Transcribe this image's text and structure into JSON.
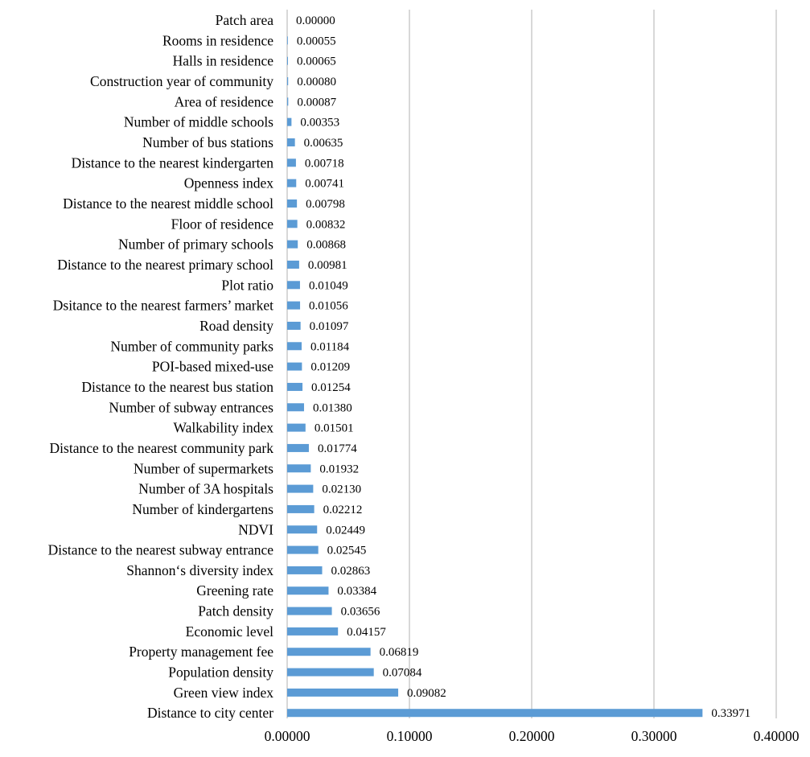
{
  "chart_data": {
    "type": "bar",
    "orientation": "horizontal",
    "categories": [
      "Patch area",
      "Rooms in residence",
      "Halls in residence",
      "Construction year of community",
      "Area of residence",
      "Number of middle schools",
      "Number of bus stations",
      "Distance to the nearest kindergarten",
      "Openness index",
      "Distance to the nearest  middle school",
      "Floor of residence",
      "Number of primary schools",
      "Distance to the nearest primary school",
      "Plot ratio",
      "Dsitance to the nearest farmers’ market",
      "Road density",
      "Number of community parks",
      "POI-based mixed-use",
      "Distance to the nearest bus station",
      "Number of subway entrances",
      "Walkability index",
      "Distance to the nearest community park",
      "Number of supermarkets",
      "Number of 3A hospitals",
      "Number of kindergartens",
      "NDVI",
      "Distance to the nearest subway entrance",
      "Shannon‘s diversity index",
      "Greening rate",
      "Patch density",
      "Economic level",
      "Property management fee",
      "Population density",
      "Green view index",
      "Distance to city center"
    ],
    "values": [
      0.0,
      0.00055,
      0.00065,
      0.0008,
      0.00087,
      0.00353,
      0.00635,
      0.00718,
      0.00741,
      0.00798,
      0.00832,
      0.00868,
      0.00981,
      0.01049,
      0.01056,
      0.01097,
      0.01184,
      0.01209,
      0.01254,
      0.0138,
      0.01501,
      0.01774,
      0.01932,
      0.0213,
      0.02212,
      0.02449,
      0.02545,
      0.02863,
      0.03384,
      0.03656,
      0.04157,
      0.06819,
      0.07084,
      0.09082,
      0.33971
    ],
    "value_labels": [
      "0.00000",
      "0.00055",
      "0.00065",
      "0.00080",
      "0.00087",
      "0.00353",
      "0.00635",
      "0.00718",
      "0.00741",
      "0.00798",
      "0.00832",
      "0.00868",
      "0.00981",
      "0.01049",
      "0.01056",
      "0.01097",
      "0.01184",
      "0.01209",
      "0.01254",
      "0.01380",
      "0.01501",
      "0.01774",
      "0.01932",
      "0.02130",
      "0.02212",
      "0.02449",
      "0.02545",
      "0.02863",
      "0.03384",
      "0.03656",
      "0.04157",
      "0.06819",
      "0.07084",
      "0.09082",
      "0.33971"
    ],
    "xlim": [
      0,
      0.4
    ],
    "x_ticks": [
      0,
      0.1,
      0.2,
      0.3,
      0.4
    ],
    "x_tick_labels": [
      "0.00000",
      "0.10000",
      "0.20000",
      "0.30000",
      "0.40000"
    ],
    "title": "",
    "xlabel": "",
    "ylabel": "",
    "grid": "vertical",
    "legend": "none",
    "bar_color": "#5b9bd5",
    "grid_color": "#bfbfbf"
  }
}
